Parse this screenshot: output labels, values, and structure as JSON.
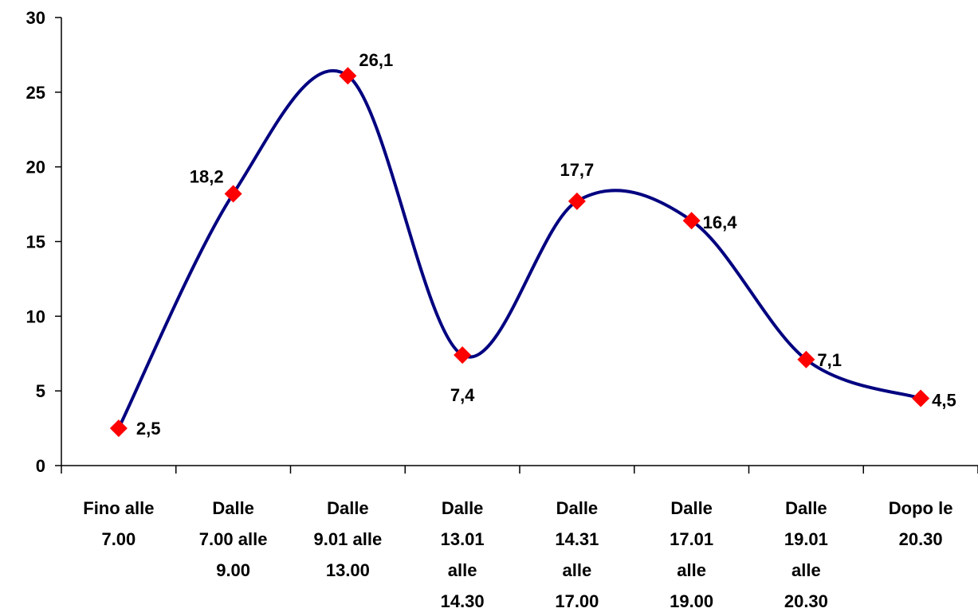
{
  "chart_data": {
    "type": "line",
    "title": "",
    "xlabel": "",
    "ylabel": "",
    "ylim": [
      0,
      30
    ],
    "yticks": [
      "0",
      "5",
      "10",
      "15",
      "20",
      "25",
      "30"
    ],
    "categories": [
      [
        "Fino alle",
        "7.00"
      ],
      [
        "Dalle",
        "7.00 alle",
        "9.00"
      ],
      [
        "Dalle",
        "9.01 alle",
        "13.00"
      ],
      [
        "Dalle",
        "13.01",
        "alle",
        "14.30"
      ],
      [
        "Dalle",
        "14.31",
        "alle",
        "17.00"
      ],
      [
        "Dalle",
        "17.01",
        "alle",
        "19.00"
      ],
      [
        "Dalle",
        "19.01",
        "alle",
        "20.30"
      ],
      [
        "Dopo le",
        "20.30"
      ]
    ],
    "values": [
      2.5,
      18.2,
      26.1,
      7.4,
      17.7,
      16.4,
      7.1,
      4.5
    ],
    "data_labels": [
      "2,5",
      "18,2",
      "26,1",
      "7,4",
      "17,7",
      "16,4",
      "7,1",
      "4,5"
    ],
    "smooth": true,
    "grid": false,
    "legend": "none",
    "colors": {
      "line": "#000080",
      "marker": "#ff0000"
    }
  }
}
